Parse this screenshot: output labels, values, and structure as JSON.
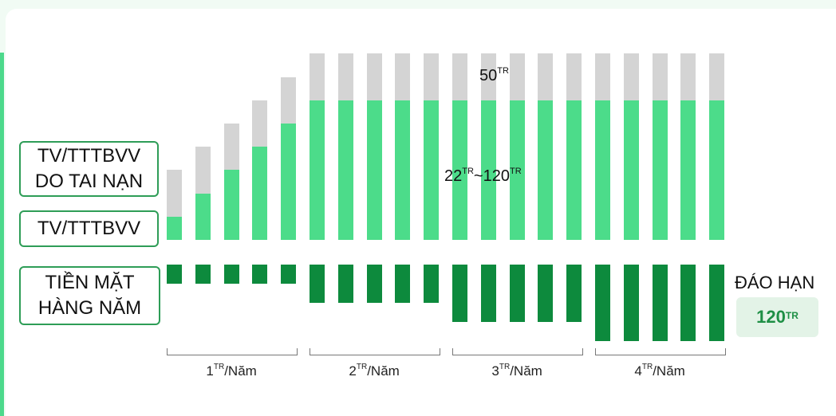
{
  "labels": {
    "accident": "TV/TTTBVV\nDO TAI NẠN",
    "death": "TV/TTTBVV",
    "cash": "TIỀN MẶT\nHÀNG NĂM"
  },
  "annotations": {
    "top_value": "50",
    "top_unit": "TR",
    "mid_from": "22",
    "mid_from_unit": "TR",
    "mid_sep": "~",
    "mid_to": "120",
    "mid_to_unit": "TR"
  },
  "maturity": {
    "title": "ĐÁO HẠN",
    "value": "120",
    "unit": "TR"
  },
  "colors": {
    "grey": "#d4d4d4",
    "light_green": "#4cdc8a",
    "dark_green": "#0d8a3d",
    "label_border": "#2e9d57"
  },
  "chart_data": {
    "type": "bar",
    "years": 20,
    "series": [
      {
        "name": "TV/TTTBVV",
        "values": [
          1,
          2,
          3,
          4,
          5,
          6,
          6,
          6,
          6,
          6,
          6,
          6,
          6,
          6,
          6,
          6,
          6,
          6,
          6,
          6
        ]
      },
      {
        "name": "TV/TTTBVV DO TAI NẠN",
        "values": [
          2,
          2,
          2,
          2,
          2,
          2,
          2,
          2,
          2,
          2,
          2,
          2,
          2,
          2,
          2,
          2,
          2,
          2,
          2,
          2
        ]
      },
      {
        "name": "TIỀN MẶT HÀNG NĂM",
        "values": [
          1,
          1,
          1,
          1,
          1,
          2,
          2,
          2,
          2,
          2,
          3,
          3,
          3,
          3,
          3,
          4,
          4,
          4,
          4,
          4
        ]
      }
    ],
    "groups": [
      {
        "value": "1",
        "unit": "TR",
        "suffix": "/Năm"
      },
      {
        "value": "2",
        "unit": "TR",
        "suffix": "/Năm"
      },
      {
        "value": "3",
        "unit": "TR",
        "suffix": "/Năm"
      },
      {
        "value": "4",
        "unit": "TR",
        "suffix": "/Năm"
      }
    ]
  }
}
